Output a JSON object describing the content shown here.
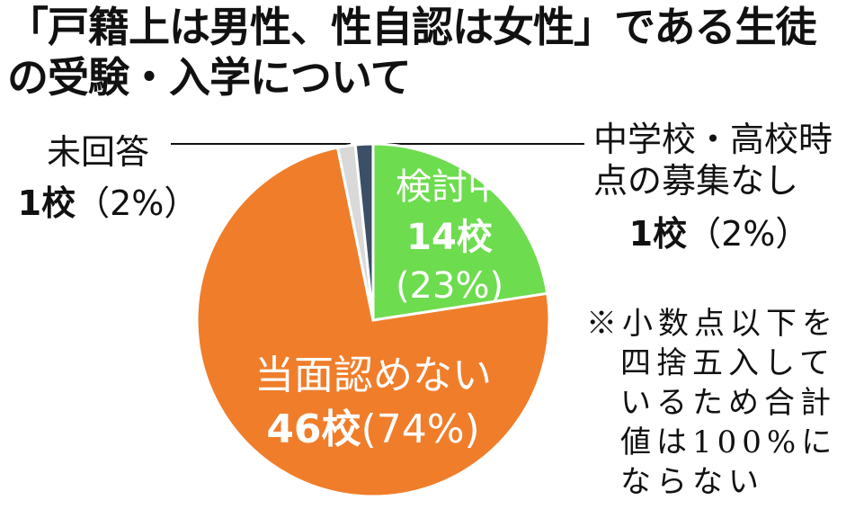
{
  "chart_data": {
    "type": "pie",
    "title": "「戸籍上は男性、性自認は女性」である生徒の受験・入学について",
    "categories": [
      "検討中",
      "当面認めない",
      "未回答",
      "中学校・高校時点の募集なし"
    ],
    "values": [
      14,
      46,
      1,
      1
    ],
    "value_labels": [
      "14校",
      "46校",
      "1校",
      "1校"
    ],
    "percent_labels": [
      "(23%)",
      "(74%)",
      "（2%）",
      "（2%）"
    ],
    "colors": [
      "#6ddc4e",
      "#f07d2a",
      "#d9d9d9",
      "#3b4f66"
    ],
    "note": "※小数点以下を四捨五入しているため合計値は100%にならない"
  }
}
